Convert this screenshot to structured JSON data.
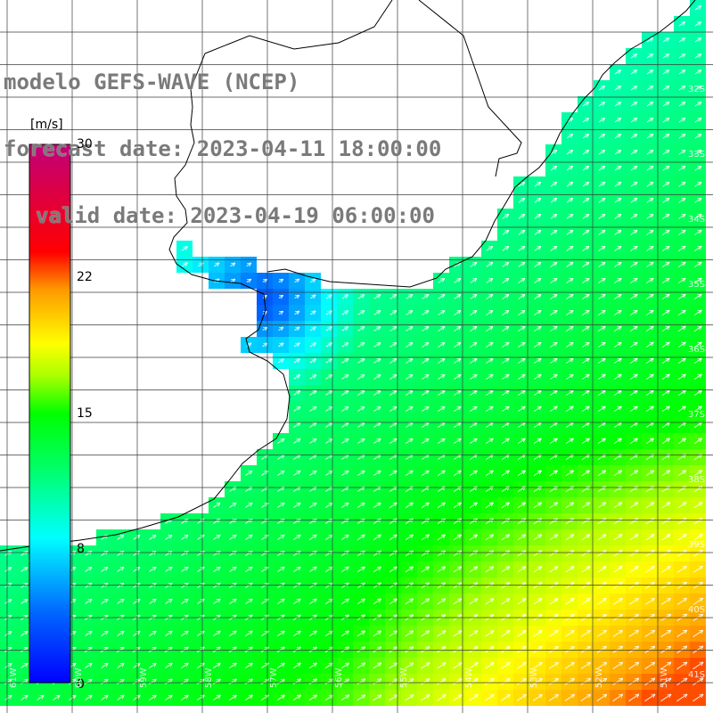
{
  "title": {
    "line1": "modelo GEFS-WAVE (NCEP)",
    "line2": "forecast date: 2023-04-11 18:00:00",
    "line3": "valid date: 2023-04-19 06:00:00"
  },
  "colorbar": {
    "unit": "[m/s]",
    "min": 0,
    "max": 30,
    "ticks": [
      "30",
      "22",
      "15",
      "8",
      "0"
    ],
    "tick_values": [
      30,
      22,
      15,
      8,
      0
    ]
  },
  "lat_labels": [
    "32S",
    "33S",
    "34S",
    "35S",
    "36S",
    "37S",
    "38S",
    "39S",
    "40S",
    "41S"
  ],
  "lon_labels": [
    "61W",
    "60W",
    "59W",
    "58W",
    "57W",
    "56W",
    "55W",
    "54W",
    "53W",
    "52W",
    "51W"
  ],
  "colors": {
    "land": "#ffffff",
    "coast": "#000000",
    "grid": "#3c3c3c",
    "title": "#7a7a7a",
    "arrow": "#ffffff"
  },
  "chart_data": {
    "type": "heatmap",
    "variable": "wind speed with direction arrows",
    "units": "m/s",
    "color_range": [
      0,
      30
    ],
    "lon_range_deg": [
      -61.6,
      -50.6
    ],
    "lat_range_deg": [
      -41.4,
      -30.6
    ],
    "grid_lines": true,
    "wind_direction_to": "north-east",
    "notes": "speeds ~4-7 m/s near Rio de la Plata, ~10-13 over mid-shelf, rising to ~19-22 m/s in the south-east"
  }
}
